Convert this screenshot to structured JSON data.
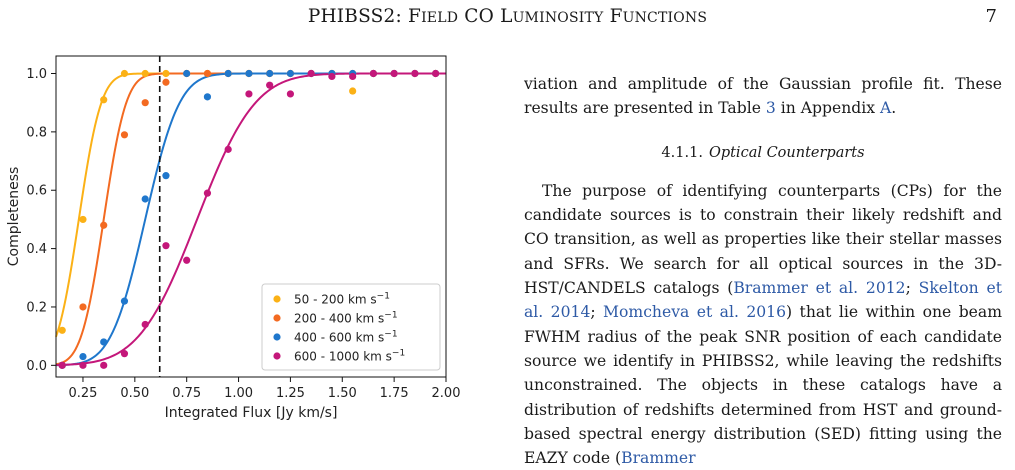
{
  "header": {
    "title_first": "PHIBSS2:",
    "title_rest": [
      {
        "cap": "F",
        "small": "ield"
      },
      {
        "cap": "CO",
        "small": ""
      },
      {
        "cap": "L",
        "small": "uminosity"
      },
      {
        "cap": "F",
        "small": "unctions"
      }
    ],
    "page_number": "7"
  },
  "chart_data": {
    "type": "scatter",
    "xlabel": "Integrated Flux [Jy km/s]",
    "ylabel": "Completeness",
    "xlim": [
      0.12,
      2.0
    ],
    "ylim": [
      -0.04,
      1.06
    ],
    "xticks": [
      0.25,
      0.5,
      0.75,
      1.0,
      1.25,
      1.5,
      1.75,
      2.0
    ],
    "xtick_labels": [
      "0.25",
      "0.50",
      "0.75",
      "1.00",
      "1.25",
      "1.50",
      "1.75",
      "2.00"
    ],
    "yticks": [
      0.0,
      0.2,
      0.4,
      0.6,
      0.8,
      1.0
    ],
    "ytick_labels": [
      "0.0",
      "0.2",
      "0.4",
      "0.6",
      "0.8",
      "1.0"
    ],
    "vline_x": 0.62,
    "legend_position": "lower-right",
    "series": [
      {
        "name": "50 - 200 km s",
        "exp": "−1",
        "color": "#fbb116",
        "mu": 0.23,
        "sigma": 0.085,
        "x": [
          0.15,
          0.25,
          0.35,
          0.45,
          0.55,
          0.65,
          0.75,
          0.85,
          0.95,
          1.05,
          1.15,
          1.25,
          1.35,
          1.45,
          1.55,
          1.65,
          1.75,
          1.85,
          1.95
        ],
        "y": [
          0.12,
          0.5,
          0.91,
          1.0,
          1.0,
          1.0,
          1.0,
          1.0,
          1.0,
          1.0,
          1.0,
          1.0,
          1.0,
          1.0,
          0.94,
          1.0,
          1.0,
          1.0,
          1.0
        ]
      },
      {
        "name": "200 - 400 km s",
        "exp": "−1",
        "color": "#f36a21",
        "mu": 0.35,
        "sigma": 0.085,
        "x": [
          0.15,
          0.25,
          0.35,
          0.45,
          0.55,
          0.65,
          0.75,
          0.85,
          0.95,
          1.05,
          1.15,
          1.25,
          1.35,
          1.45,
          1.55,
          1.65,
          1.75,
          1.85,
          1.95
        ],
        "y": [
          0.0,
          0.2,
          0.48,
          0.79,
          0.9,
          0.97,
          1.0,
          1.0,
          1.0,
          1.0,
          1.0,
          1.0,
          1.0,
          1.0,
          1.0,
          1.0,
          1.0,
          1.0,
          1.0
        ]
      },
      {
        "name": "400 - 600 km s",
        "exp": "−1",
        "color": "#1f77cc",
        "mu": 0.55,
        "sigma": 0.13,
        "x": [
          0.15,
          0.25,
          0.35,
          0.45,
          0.55,
          0.65,
          0.75,
          0.85,
          0.95,
          1.05,
          1.15,
          1.25,
          1.35,
          1.45,
          1.55,
          1.65,
          1.75,
          1.85,
          1.95
        ],
        "y": [
          0.0,
          0.03,
          0.08,
          0.22,
          0.57,
          0.65,
          1.0,
          0.92,
          1.0,
          1.0,
          1.0,
          1.0,
          1.0,
          1.0,
          1.0,
          1.0,
          1.0,
          1.0,
          1.0
        ]
      },
      {
        "name": "600 - 1000 km s",
        "exp": "−1",
        "color": "#c4177a",
        "mu": 0.8,
        "sigma": 0.22,
        "x": [
          0.15,
          0.25,
          0.35,
          0.45,
          0.55,
          0.65,
          0.75,
          0.85,
          0.95,
          1.05,
          1.15,
          1.25,
          1.35,
          1.45,
          1.55,
          1.65,
          1.75,
          1.85,
          1.95
        ],
        "y": [
          0.0,
          0.0,
          0.0,
          0.04,
          0.14,
          0.41,
          0.36,
          0.59,
          0.74,
          0.93,
          0.96,
          0.93,
          1.0,
          0.99,
          0.99,
          1.0,
          1.0,
          1.0,
          1.0
        ]
      }
    ]
  },
  "body": {
    "para1": "viation and amplitude of the Gaussian profile fit. These results are presented in Table",
    "para1_ref1": "3",
    "para1_mid": "in Appendix",
    "para1_ref2": "A",
    "para1_end": ".",
    "subsection_number": "4.1.1.",
    "subsection_title": "Optical Counterparts",
    "para2_a": "The purpose of identifying counterparts (CPs) for the candidate sources is to constrain their likely redshift and CO transition, as well as properties like their stellar masses and SFRs.  We search for all optical sources in the 3D-HST/CANDELS catalogs (",
    "cite1": "Brammer et al. 2012",
    "para2_b": "; ",
    "cite2": "Skelton et al. 2014",
    "para2_c": "; ",
    "cite3": "Momcheva et al. 2016",
    "para2_d": ") that lie within one beam FWHM radius of the peak SNR position of each candidate source we identify in PHIBSS2, while leaving the redshifts unconstrained. The objects in these catalogs have a distribution of redshifts determined from HST and ground-based spectral energy distribution (SED) fitting using the EAZY code (",
    "cite4": "Brammer"
  }
}
